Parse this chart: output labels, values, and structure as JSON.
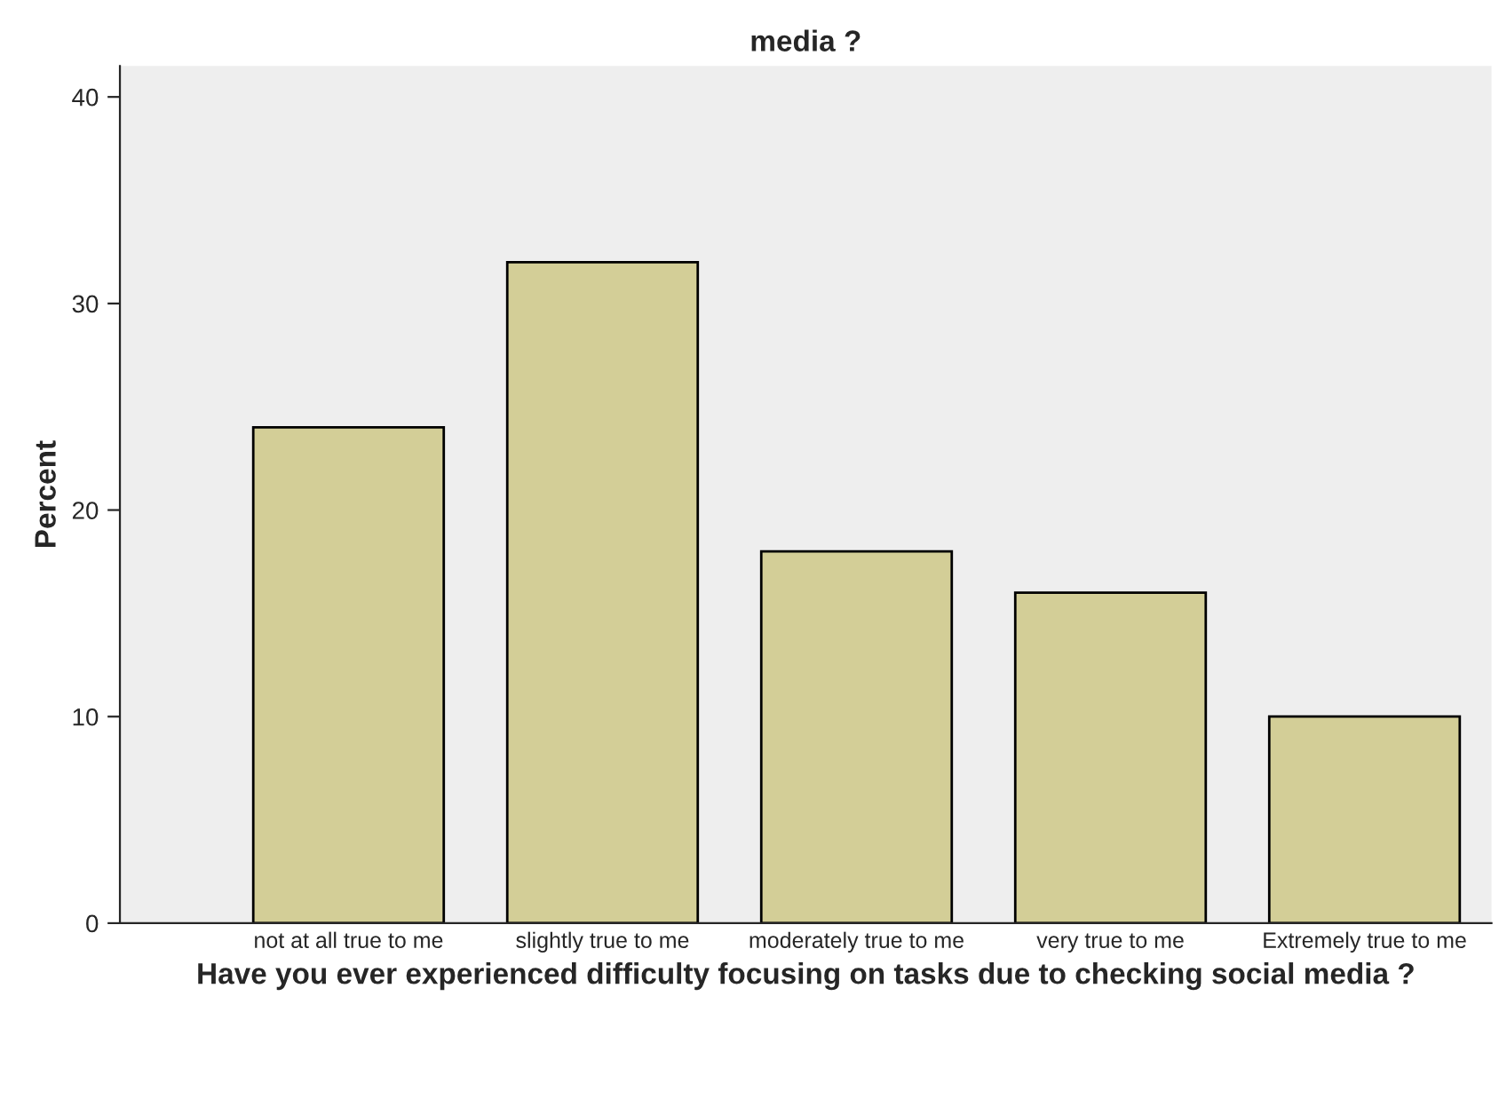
{
  "chart_data": {
    "type": "bar",
    "title": "media ?",
    "xlabel": "Have you ever experienced difficulty focusing on tasks due to checking social media ?",
    "ylabel": "Percent",
    "categories": [
      "not at all true to me",
      "slightly true to me",
      "moderately true to me",
      "very true to me",
      "Extremely true to me"
    ],
    "values": [
      24,
      32,
      18,
      16,
      10
    ],
    "color": "#d3ce97",
    "ylim": [
      0,
      41.5
    ],
    "yticks": [
      0,
      10,
      20,
      30,
      40
    ],
    "grid": false
  }
}
